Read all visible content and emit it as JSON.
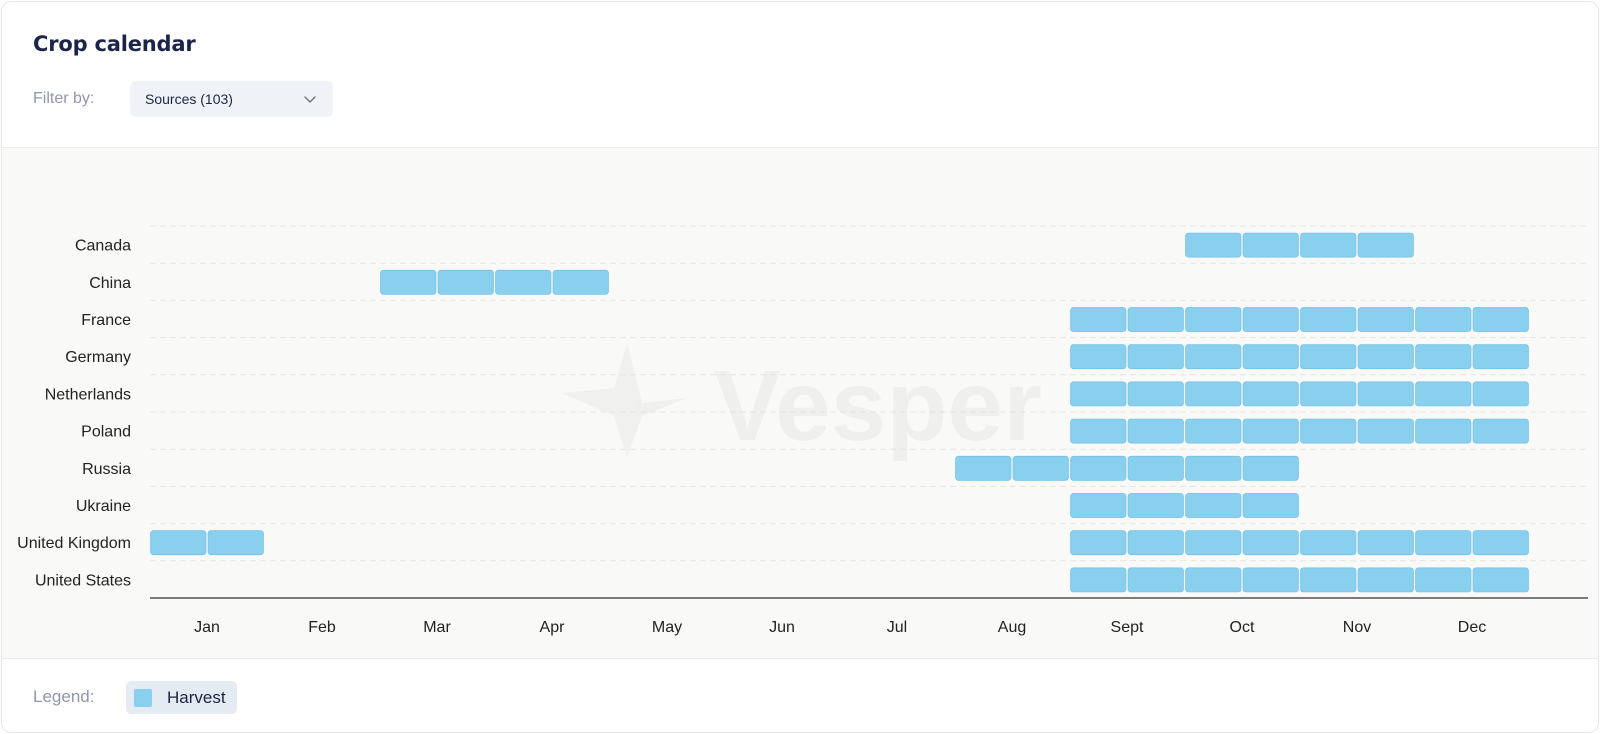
{
  "title": "Crop calendar",
  "filter": {
    "label": "Filter by:",
    "value": "Sources (103)"
  },
  "legend": {
    "label": "Legend:",
    "items": [
      {
        "name": "Harvest",
        "color": "#89cfee"
      }
    ]
  },
  "colors": {
    "harvest": "#89cfee",
    "grid": "#e3e6e3",
    "axis": "#333333"
  },
  "watermark": "Vesper",
  "chart_data": {
    "type": "gantt",
    "x_ticks": [
      "Jan",
      "Feb",
      "Mar",
      "Apr",
      "May",
      "Jun",
      "Jul",
      "Aug",
      "Sept",
      "Oct",
      "Nov",
      "Dec"
    ],
    "periods_per_month": 2,
    "categories": [
      "Canada",
      "China",
      "France",
      "Germany",
      "Netherlands",
      "Poland",
      "Russia",
      "Ukraine",
      "United Kingdom",
      "United States"
    ],
    "rows": [
      {
        "name": "Canada",
        "series": "Harvest",
        "periods": [
          [
            19,
            22
          ]
        ]
      },
      {
        "name": "China",
        "series": "Harvest",
        "periods": [
          [
            5,
            8
          ]
        ]
      },
      {
        "name": "France",
        "series": "Harvest",
        "periods": [
          [
            17,
            24
          ]
        ]
      },
      {
        "name": "Germany",
        "series": "Harvest",
        "periods": [
          [
            17,
            24
          ]
        ]
      },
      {
        "name": "Netherlands",
        "series": "Harvest",
        "periods": [
          [
            17,
            24
          ]
        ]
      },
      {
        "name": "Poland",
        "series": "Harvest",
        "periods": [
          [
            17,
            24
          ]
        ]
      },
      {
        "name": "Russia",
        "series": "Harvest",
        "periods": [
          [
            15,
            20
          ]
        ]
      },
      {
        "name": "Ukraine",
        "series": "Harvest",
        "periods": [
          [
            17,
            20
          ]
        ]
      },
      {
        "name": "United Kingdom",
        "series": "Harvest",
        "periods": [
          [
            1,
            2
          ],
          [
            17,
            24
          ]
        ]
      },
      {
        "name": "United States",
        "series": "Harvest",
        "periods": [
          [
            17,
            24
          ]
        ]
      }
    ]
  }
}
